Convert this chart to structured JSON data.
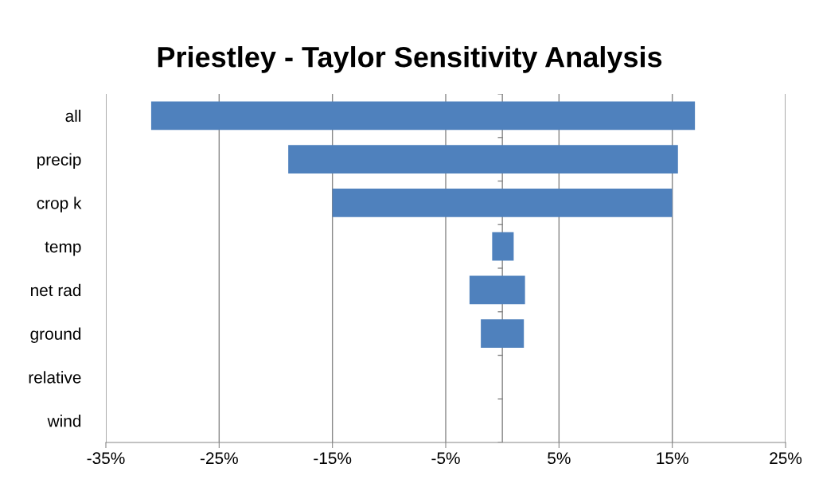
{
  "chart_data": {
    "type": "bar",
    "orientation": "horizontal",
    "title": "Priestley - Taylor Sensitivity Analysis",
    "categories": [
      "all",
      "precip",
      "crop k",
      "temp",
      "net rad",
      "ground",
      "relative",
      "wind"
    ],
    "base": [
      -31.0,
      -18.9,
      -15.0,
      -0.9,
      -2.9,
      -1.9,
      null,
      null
    ],
    "values": [
      48.0,
      34.4,
      30.0,
      1.9,
      4.9,
      3.8,
      null,
      null
    ],
    "color": "#4f81bd",
    "xlim": [
      -35,
      25
    ],
    "xticks": [
      {
        "value": -35,
        "label": "-35%"
      },
      {
        "value": -25,
        "label": "-25%"
      },
      {
        "value": -15,
        "label": "-15%"
      },
      {
        "value": -5,
        "label": "-5%"
      },
      {
        "value": 5,
        "label": "5%"
      },
      {
        "value": 15,
        "label": "15%"
      },
      {
        "value": 25,
        "label": "25%"
      }
    ],
    "grid": "x",
    "legend": false
  }
}
